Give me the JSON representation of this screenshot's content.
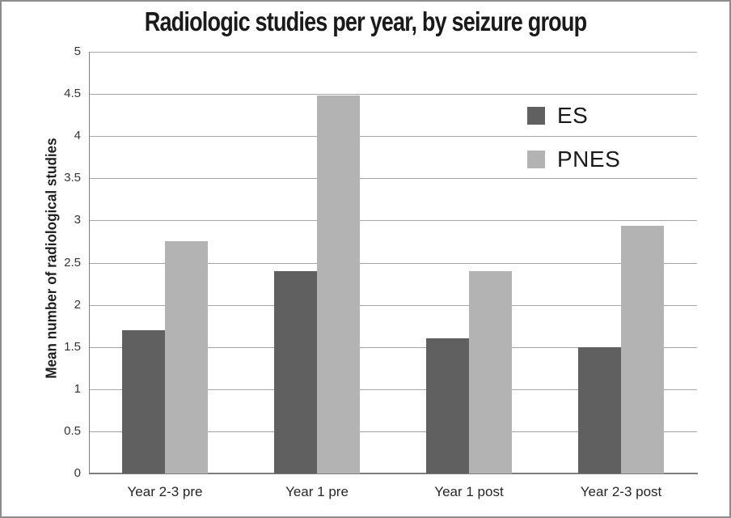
{
  "chart_data": {
    "type": "bar",
    "title": "Radiologic studies per year, by seizure group",
    "ylabel": "Mean number of radiological studies",
    "xlabel": "",
    "categories": [
      "Year 2-3 pre",
      "Year 1 pre",
      "Year 1 post",
      "Year 2-3 post"
    ],
    "series": [
      {
        "name": "ES",
        "color": "#606060",
        "values": [
          1.7,
          2.4,
          1.6,
          1.5
        ]
      },
      {
        "name": "PNES",
        "color": "#b3b3b3",
        "values": [
          2.75,
          4.48,
          2.4,
          2.94
        ]
      }
    ],
    "ylim": [
      0,
      5
    ],
    "ytick_step": 0.5,
    "yticks": [
      "0",
      "0.5",
      "1",
      "1.5",
      "2",
      "2.5",
      "3",
      "3.5",
      "4",
      "4.5",
      "5"
    ],
    "grid": "horizontal",
    "legend_position": "upper-right",
    "legend_labels": [
      "ES",
      "PNES"
    ],
    "colors": {
      "bar_es": "#606060",
      "bar_pnes": "#b3b3b3",
      "gridline": "#a6a6a6",
      "axis_line": "#7f7f7f",
      "tick_text": "#333333",
      "title_text": "#1a1a1a",
      "background": "#ffffff",
      "frame_border": "#8c8c8c"
    }
  }
}
